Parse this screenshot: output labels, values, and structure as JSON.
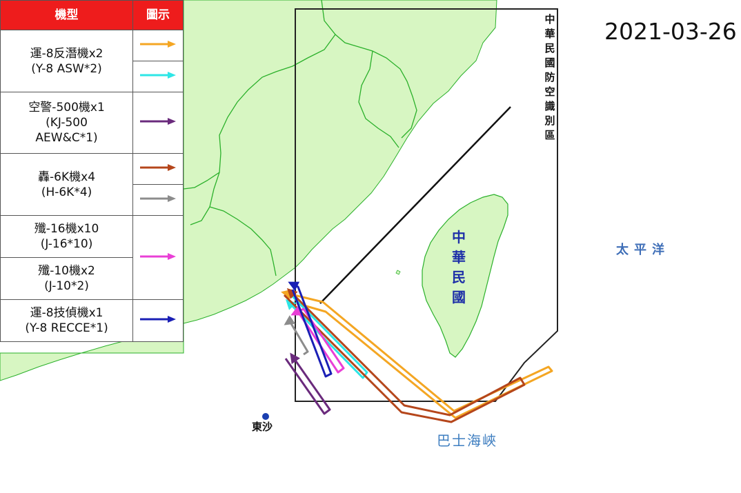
{
  "date": "2021-03-26",
  "legend": {
    "header_type": "機型",
    "header_icon": "圖示",
    "rows": [
      {
        "line1": "運-8反潛機x2",
        "line2": "(Y-8 ASW*2)",
        "line3": "",
        "arrow_colors": [
          "#f4a623",
          "#2ee6e6"
        ]
      },
      {
        "line1": "空警-500機x1",
        "line2": "(KJ-500",
        "line3": "AEW&C*1)",
        "arrow_colors": [
          "#6a2a7c"
        ]
      },
      {
        "line1": "轟-6K機x4",
        "line2": "(H-6K*4)",
        "line3": "",
        "arrow_colors": [
          "#b5461b",
          "#8c8c8c"
        ]
      },
      {
        "line1": "殲-16機x10",
        "line2": "(J-16*10)",
        "line3": "",
        "arrow_colors": [
          "#e93fd6"
        ]
      },
      {
        "line1": "殲-10機x2",
        "line2": "(J-10*2)",
        "line3": "",
        "arrow_colors": []
      },
      {
        "line1": "運-8技偵機x1",
        "line2": "(Y-8 RECCE*1)",
        "line3": "",
        "arrow_colors": [
          "#1a1fb5"
        ]
      }
    ]
  },
  "map_labels": {
    "adiz": "中華民國防空識別區",
    "taiwan": "中華民國",
    "pacific": "太平洋",
    "bashi_channel": "巴士海峽",
    "dongsha": "東沙"
  },
  "colors": {
    "land": "#d7f6c2",
    "border": "#2ab02a",
    "header_bg": "#ee1c1c",
    "y8_asw_1": "#f4a623",
    "y8_asw_2": "#2ee6e6",
    "kj500": "#6a2a7c",
    "h6k_1": "#b5461b",
    "h6k_2": "#8c8c8c",
    "j16": "#e93fd6",
    "y8_recce": "#1a1fb5",
    "dongsha_dot": "#1a3fb0"
  }
}
